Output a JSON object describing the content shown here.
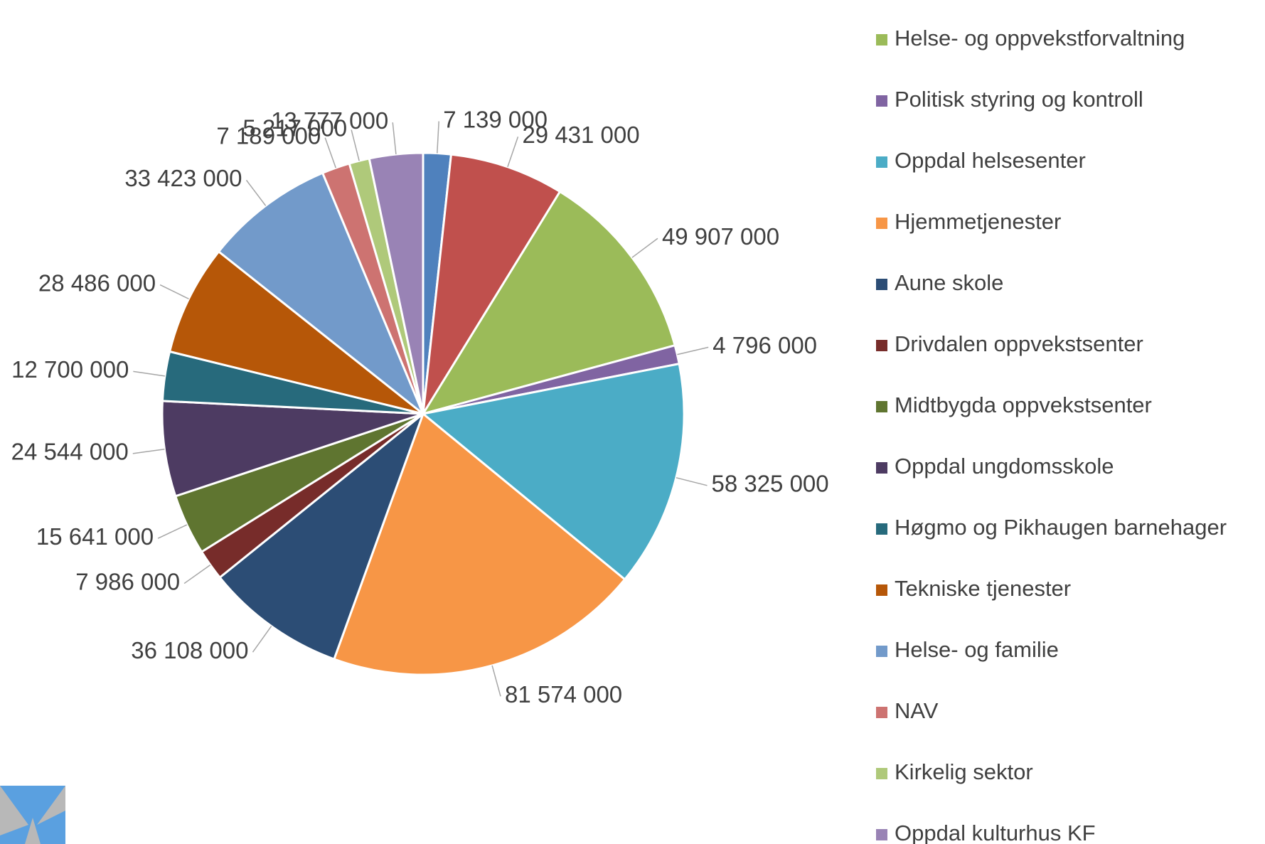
{
  "chart_data": {
    "type": "pie",
    "categories": [
      null,
      null,
      "Helse- og oppvekstforvaltning",
      "Politisk styring og kontroll",
      "Oppdal helsesenter",
      "Hjemmetjenester",
      "Aune skole",
      "Drivdalen oppvekstsenter",
      "Midtbygda oppvekstsenter",
      "Oppdal ungdomsskole",
      "Høgmo og Pikhaugen barnehager",
      "Tekniske tjenester",
      "Helse- og familie",
      "NAV",
      "Kirkelig sektor",
      "Oppdal kulturhus KF"
    ],
    "values": [
      7139000,
      29431000,
      49907000,
      4796000,
      58325000,
      81574000,
      36108000,
      7986000,
      15641000,
      24544000,
      12700000,
      28486000,
      33423000,
      7189000,
      5217000,
      13777000
    ],
    "value_labels": [
      "7 139 000",
      "29 431 000",
      "49 907 000",
      "4 796 000",
      "58 325 000",
      "81 574 000",
      "36 108 000",
      "7 986 000",
      "15 641 000",
      "24 544 000",
      "12 700 000",
      "28 486 000",
      "33 423 000",
      "7 189 000",
      "5 217 000",
      "13 777 000"
    ],
    "colors": [
      "#4f81bd",
      "#c0504d",
      "#9bbb59",
      "#8064a2",
      "#4bacc6",
      "#f79646",
      "#2c4d75",
      "#772c2a",
      "#5f7530",
      "#4d3b62",
      "#276a7c",
      "#b65708",
      "#729aca",
      "#cd7371",
      "#afc97a",
      "#9983b5"
    ]
  }
}
